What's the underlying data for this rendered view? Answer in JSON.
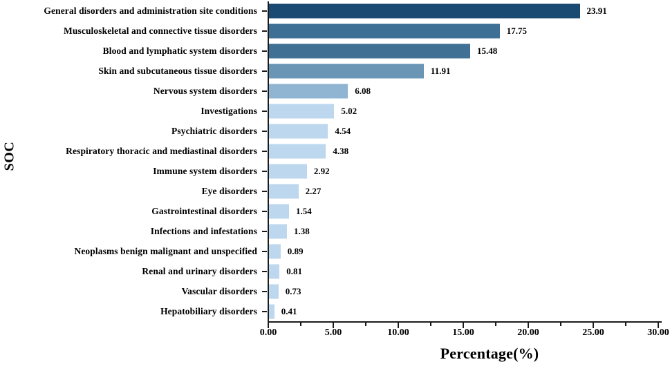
{
  "chart_data": {
    "type": "bar",
    "orientation": "horizontal",
    "title": "",
    "xlabel": "Percentage(%)",
    "ylabel": "SOC",
    "xlim": [
      0,
      30
    ],
    "grid": false,
    "legend": false,
    "categories": [
      "General disorders and administration site conditions",
      "Musculoskeletal and connective tissue disorders",
      "Blood and lymphatic system disorders",
      "Skin and subcutaneous tissue disorders",
      "Nervous system disorders",
      "Investigations",
      "Psychiatric disorders",
      "Respiratory thoracic and mediastinal disorders",
      "Immune system disorders",
      "Eye disorders",
      "Gastrointestinal disorders",
      "Infections and infestations",
      "Neoplasms benign malignant and unspecified",
      "Renal and urinary disorders",
      "Vascular disorders",
      "Hepatobiliary disorders"
    ],
    "values": [
      23.91,
      17.75,
      15.48,
      11.91,
      6.08,
      5.02,
      4.54,
      4.38,
      2.92,
      2.27,
      1.54,
      1.38,
      0.89,
      0.81,
      0.73,
      0.41
    ],
    "value_labels": [
      "23.91",
      "17.75",
      "15.48",
      "11.91",
      "6.08",
      "5.02",
      "4.54",
      "4.38",
      "2.92",
      "2.27",
      "1.54",
      "1.38",
      "0.89",
      "0.81",
      "0.73",
      "0.41"
    ],
    "bar_colors": [
      "#1A4A71",
      "#3E6F94",
      "#407194",
      "#6A95B5",
      "#90B5D2",
      "#BDD7EE",
      "#BDD7EE",
      "#BDD7EE",
      "#BDD7EE",
      "#BDD7EE",
      "#BDD7EE",
      "#BDD7EE",
      "#BDD7EE",
      "#BDD7EE",
      "#BDD7EE",
      "#BDD7EE"
    ],
    "x_major_tick_labels": [
      "0.00",
      "5.00",
      "10.00",
      "15.00",
      "20.00",
      "25.00",
      "30.00"
    ],
    "x_major_tick_values": [
      0,
      5,
      10,
      15,
      20,
      25,
      30
    ],
    "x_minor_tick_values": [
      2.5,
      7.5,
      12.5,
      17.5,
      22.5,
      27.5
    ],
    "axis_color": "#1a1a1a",
    "text_color": "#000000"
  }
}
